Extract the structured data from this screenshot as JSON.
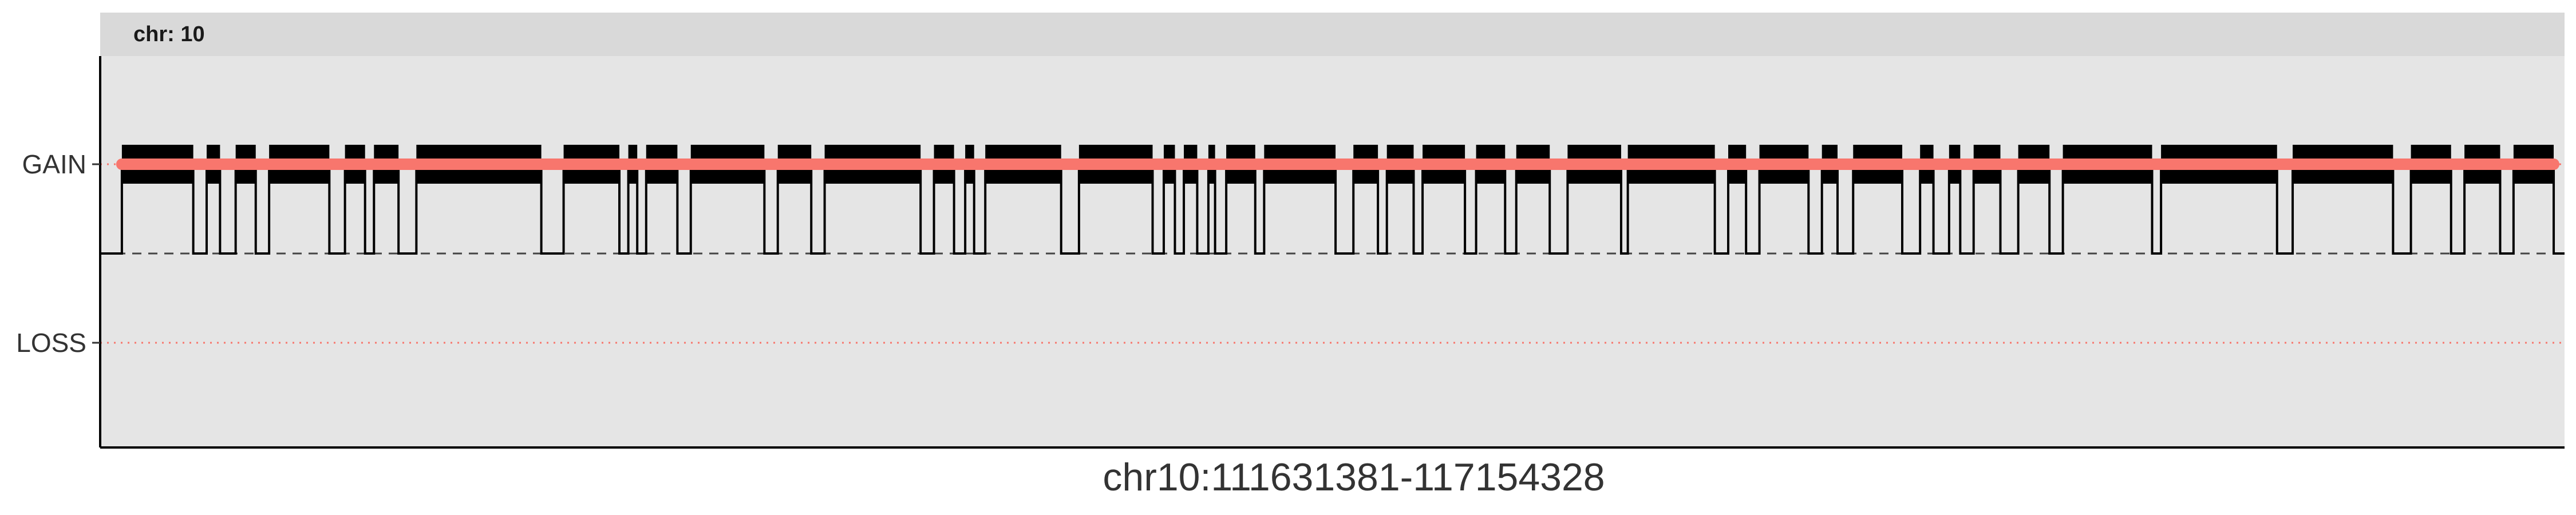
{
  "chart_data": {
    "type": "line",
    "facet_label": "chr: 10",
    "title": "",
    "xlabel": "chr10:111631381-117154328",
    "ylabel": "",
    "y_categories": [
      "LOSS",
      "GAIN"
    ],
    "y_ticks": [
      {
        "label": "GAIN",
        "value": 1
      },
      {
        "label": "LOSS",
        "value": -1
      }
    ],
    "ylim": [
      -1.6,
      1.6
    ],
    "xlim": [
      111631381,
      117154328
    ],
    "baseline": 0,
    "gain_segment": {
      "start": 111680000,
      "end": 117130000,
      "value": 1
    },
    "segments": [
      [
        111680000,
        111840000
      ],
      [
        111870000,
        111900000
      ],
      [
        111935000,
        111980000
      ],
      [
        112010000,
        112145000
      ],
      [
        112180000,
        112225000
      ],
      [
        112245000,
        112300000
      ],
      [
        112340000,
        112620000
      ],
      [
        112670000,
        112795000
      ],
      [
        112815000,
        112835000
      ],
      [
        112855000,
        112925000
      ],
      [
        112955000,
        113120000
      ],
      [
        113150000,
        113225000
      ],
      [
        113255000,
        113470000
      ],
      [
        113500000,
        113545000
      ],
      [
        113570000,
        113590000
      ],
      [
        113615000,
        113785000
      ],
      [
        113825000,
        113990000
      ],
      [
        114015000,
        114040000
      ],
      [
        114060000,
        114090000
      ],
      [
        114115000,
        114130000
      ],
      [
        114155000,
        114220000
      ],
      [
        114240000,
        114400000
      ],
      [
        114440000,
        114495000
      ],
      [
        114515000,
        114575000
      ],
      [
        114595000,
        114690000
      ],
      [
        114715000,
        114780000
      ],
      [
        114805000,
        114880000
      ],
      [
        114920000,
        115040000
      ],
      [
        115055000,
        115250000
      ],
      [
        115280000,
        115320000
      ],
      [
        115350000,
        115460000
      ],
      [
        115490000,
        115525000
      ],
      [
        115560000,
        115670000
      ],
      [
        115710000,
        115740000
      ],
      [
        115775000,
        115800000
      ],
      [
        115830000,
        115890000
      ],
      [
        115930000,
        116000000
      ],
      [
        116030000,
        116230000
      ],
      [
        116250000,
        116510000
      ],
      [
        116545000,
        116770000
      ],
      [
        116810000,
        116900000
      ],
      [
        116930000,
        117010000
      ],
      [
        117040000,
        117130000
      ]
    ],
    "colors": {
      "panel_bg": "#e5e5e5",
      "strip_bg": "#d9d9d9",
      "gain_line": "#f8766d",
      "segments": "#000000",
      "reference": "#f8766d",
      "baseline": "#444444",
      "axis": "#000000",
      "tick_label": "#333333"
    },
    "grid": false,
    "legend": "none"
  }
}
